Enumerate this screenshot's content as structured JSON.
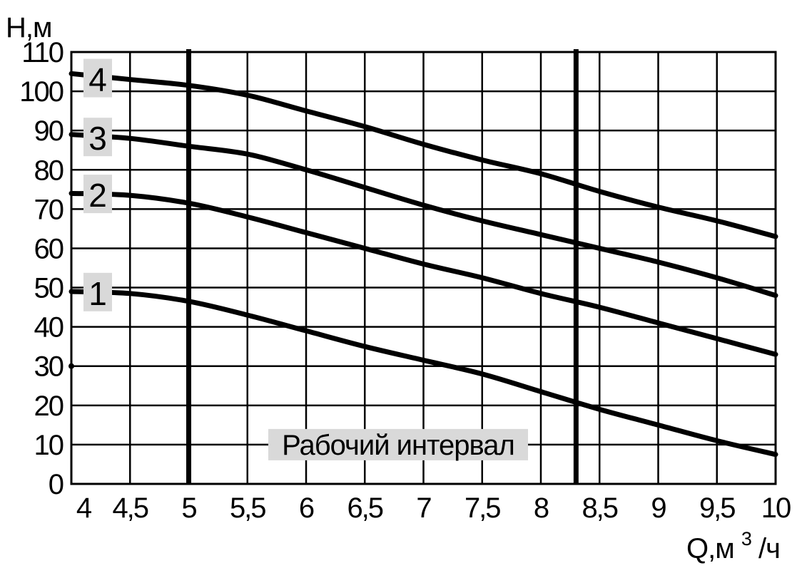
{
  "chart_data": {
    "type": "line",
    "title": "",
    "ylabel": "Н,м",
    "xlabel_main": "Q,м",
    "xlabel_sup": "3",
    "xlabel_tail": "/ч",
    "xlim": [
      4,
      10
    ],
    "ylim": [
      0,
      110
    ],
    "x_ticks": [
      4,
      4.5,
      5,
      5.5,
      6,
      6.5,
      7,
      7.5,
      8,
      8.5,
      9,
      9.5,
      10
    ],
    "x_tick_labels": [
      "4",
      "4,5",
      "5",
      "5,5",
      "6",
      "6,5",
      "7",
      "7,5",
      "8",
      "8,5",
      "9",
      "9,5",
      "10"
    ],
    "y_ticks": [
      0,
      10,
      20,
      30,
      40,
      50,
      60,
      70,
      80,
      90,
      100,
      110
    ],
    "y_tick_labels": [
      "0",
      "10",
      "20",
      "30",
      "40",
      "50",
      "60",
      "70",
      "80",
      "90",
      "100",
      "110"
    ],
    "grid": true,
    "working_interval": {
      "label": "Рабочий интервал",
      "from": 5,
      "to": 8.3
    },
    "series": [
      {
        "label": "1",
        "x": [
          4,
          4.5,
          5,
          5.5,
          6,
          6.5,
          7,
          7.5,
          8,
          8.5,
          9,
          9.5,
          10
        ],
        "y": [
          49,
          48.5,
          46.5,
          43,
          39,
          35,
          31.5,
          28,
          23.5,
          19,
          15,
          11,
          7.5
        ]
      },
      {
        "label": "2",
        "x": [
          4,
          4.5,
          5,
          5.5,
          6,
          6.5,
          7,
          7.5,
          8,
          8.5,
          9,
          9.5,
          10
        ],
        "y": [
          74,
          73.5,
          71.5,
          68,
          64,
          60,
          56,
          52.5,
          48.5,
          45,
          41,
          37,
          33
        ]
      },
      {
        "label": "3",
        "x": [
          4,
          4.5,
          5,
          5.5,
          6,
          6.5,
          7,
          7.5,
          8,
          8.5,
          9,
          9.5,
          10
        ],
        "y": [
          89,
          88,
          86,
          84,
          80,
          75.5,
          71,
          67,
          63.5,
          60,
          56.5,
          52.5,
          48
        ]
      },
      {
        "label": "4",
        "x": [
          4,
          4.5,
          5,
          5.5,
          6,
          6.5,
          7,
          7.5,
          8,
          8.5,
          9,
          9.5,
          10
        ],
        "y": [
          104.5,
          103,
          101.5,
          99,
          95,
          91,
          86.5,
          82.5,
          79,
          74.5,
          70.5,
          67,
          63
        ]
      }
    ]
  }
}
